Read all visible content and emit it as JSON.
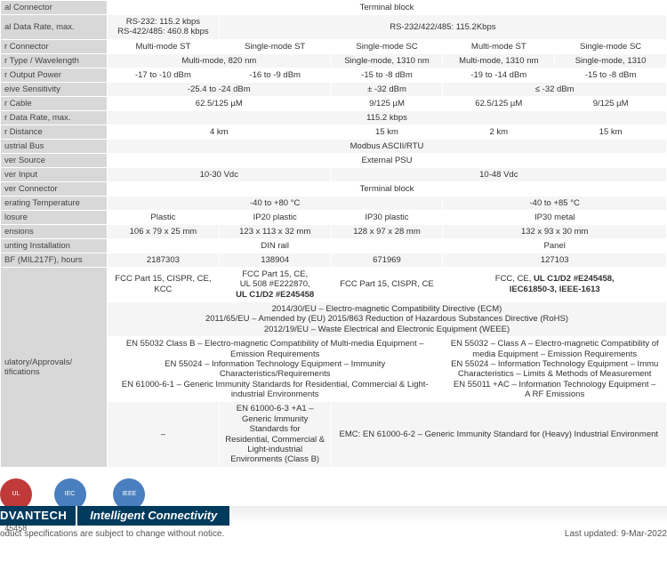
{
  "rows": {
    "serial_connector": {
      "label": "al Connector",
      "v": "Terminal block"
    },
    "serial_data_rate": {
      "label": "al Data Rate, max.",
      "c1": "RS-232: 115.2 kbps\nRS-422/485: 460.8 kbps",
      "c2": "RS-232/422/485: 115.2Kbps"
    },
    "fiber_connector": {
      "label": "r Connector",
      "c1": "Multi-mode ST",
      "c2": "Single-mode ST",
      "c3": "Single-mode SC",
      "c4": "Multi-mode ST",
      "c5": "Single-mode SC"
    },
    "fiber_type": {
      "label": "r Type / Wavelength",
      "c1": "Multi-mode, 820 nm",
      "c2": "Single-mode, 1310 nm",
      "c3": "Multi-mode, 1310 nm",
      "c4": "Single-mode, 1310"
    },
    "fiber_output": {
      "label": "r Output Power",
      "c1": "-17 to -10 dBm",
      "c2": "-16 to -9 dBm",
      "c3": "-15 to -8 dBm",
      "c4": "-19 to -14 dBm",
      "c5": "-15 to -8 dBm"
    },
    "receive_sens": {
      "label": "eive Sensitivity",
      "c1": "-25.4 to -24 dBm",
      "c2": "± -32 dBm",
      "c3": "≤ -32 dBm"
    },
    "fiber_cable": {
      "label": "r Cable",
      "c1": "62.5/125 µM",
      "c2": "9/125 µM",
      "c3": "62.5/125 µM",
      "c4": "9/125 µM"
    },
    "fiber_data_rate": {
      "label": "r Data Rate, max.",
      "v": "115.2 kbps"
    },
    "fiber_distance": {
      "label": "r Distance",
      "c1": "4 km",
      "c2": "15 km",
      "c3": "2 km",
      "c4": "15 km"
    },
    "industrial_bus": {
      "label": "ustrial Bus",
      "v": "Modbus ASCII/RTU"
    },
    "power_source": {
      "label": "ver Source",
      "v": "External PSU"
    },
    "power_input": {
      "label": "ver Input",
      "c1": "10-30 Vdc",
      "c2": "10-48 Vdc"
    },
    "power_connector": {
      "label": "ver Connector",
      "v": "Terminal block"
    },
    "op_temp": {
      "label": "erating Temperature",
      "c1": "-40 to +80 °C",
      "c2": "-40 to +85 °C"
    },
    "enclosure": {
      "label": "losure",
      "c1": "Plastic",
      "c2": "IP20 plastic",
      "c3": "IP30 plastic",
      "c4": "IP30 metal"
    },
    "dimensions": {
      "label": "ensions",
      "c1": "106 x 79 x 25 mm",
      "c2": "123 x 113 x 32 mm",
      "c3": "128 x 97 x 28 mm",
      "c4": "132 x 93 x 30 mm"
    },
    "mounting": {
      "label": "unting Installation",
      "c1": "DIN rail",
      "c2": "Panel"
    },
    "mtbf": {
      "label": "BF (MIL217F), hours",
      "c1": "2187303",
      "c2": "138904",
      "c3": "671969",
      "c4": "127103"
    },
    "cert1": {
      "c1": "FCC Part 15, CISPR, CE, KCC",
      "c2": "FCC Part 15, CE,\nUL 508 #E222870,\nUL C1/D2 #E245458",
      "c3": "FCC Part 15, CISPR, CE",
      "c4": "FCC, CE, UL C1/D2 #E245458,\nIEC61850-3, IEEE-1613"
    },
    "regulatory_label": "ulatory/Approvals/\ntifications",
    "directives": "2014/30/EU – Electro-magnetic Compatibility Directive (ECM)\n2011/65/EU – Amended by (EU) 2015/863 Reduction of Hazardous Substances Directive (RoHS)\n2012/19/EU – Waste Electrical and Electronic Equipment (WEEE)",
    "standards_left": "EN 55032 Class B – Electro-magnetic Compatibility of Multi-media Equipment – Emission Requirements\nEN 55024 – Information Technology Equipment – Immunity Characteristics/Requirements\nEN 61000-6-1 – Generic Immunity Standards for Residential, Commercial & Light-industrial Environments",
    "standards_right": "EN 55032 – Class A – Electro-magnetic Compatibility of\nmedia Equipment – Emission Requirements\nEN 55024 – Information Technology Equipment – Immu\nCharacteristics – Limits & Methods of Measurement\nEN 55011 +AC – Information Technology Equipment –\nA RF Emissions",
    "row_last": {
      "c1": "–",
      "c2": "EN 61000-6-3 +A1 – Generic Immunity Standards for\nResidential, Commercial & Light-industrial Environments (Class B)",
      "c3": "EMC: EN 61000-6-2 – Generic Immunity Standard for (Heavy) Industrial Environment"
    }
  },
  "badges": [
    {
      "name": "UL",
      "caption": "C1/D2\n45458",
      "color": "#c03a3a"
    },
    {
      "name": "IEC",
      "caption": "†IEC61850-3",
      "color": "#4a7fbf"
    },
    {
      "name": "IEEE",
      "caption": "‡IEEE-1613",
      "color": "#4a7fbf"
    }
  ],
  "footer": {
    "brand": "DVANTECH",
    "slogan": "Intelligent Connectivity",
    "note": "oduct specifications are subject to change without notice.",
    "updated": "Last updated: 9-Mar-2022"
  },
  "colors": {
    "header_bg": "#d8d8d8",
    "row_alt": "#f5f5f5",
    "brand_bg": "#003a5d"
  }
}
